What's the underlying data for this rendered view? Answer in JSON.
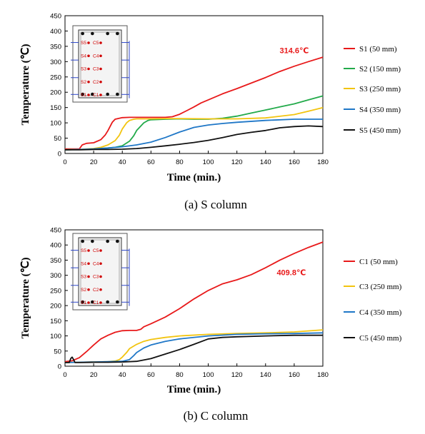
{
  "chart_data": [
    {
      "type": "line",
      "caption": "(a) S column",
      "xlabel": "Time (min.)",
      "ylabel": "Temperature (℃)",
      "xlim": [
        0,
        180
      ],
      "ylim": [
        0,
        450
      ],
      "xticks": [
        0,
        20,
        40,
        60,
        80,
        100,
        120,
        140,
        160,
        180
      ],
      "yticks": [
        0,
        50,
        100,
        150,
        200,
        250,
        300,
        350,
        400,
        450
      ],
      "grid": false,
      "legend_position": "right",
      "annotation": {
        "text": "314.6℃",
        "x": 160,
        "y": 328,
        "color": "#e8191a"
      },
      "inset": {
        "labels": [
          "S5",
          "C5",
          "S4",
          "C4",
          "S3",
          "C3",
          "S2",
          "C2",
          "S1",
          "C1"
        ]
      },
      "series": [
        {
          "name": "S1 (50 mm)",
          "color": "#e8191a",
          "x": [
            0,
            5,
            10,
            12,
            15,
            20,
            25,
            28,
            30,
            33,
            35,
            40,
            45,
            50,
            60,
            70,
            75,
            80,
            85,
            90,
            95,
            100,
            110,
            120,
            130,
            140,
            145,
            150,
            160,
            170,
            180
          ],
          "y": [
            15,
            15,
            15,
            28,
            33,
            35,
            45,
            60,
            75,
            102,
            112,
            117,
            118,
            118,
            118,
            118,
            120,
            128,
            140,
            152,
            165,
            175,
            195,
            212,
            230,
            248,
            258,
            268,
            285,
            300,
            314.6
          ]
        },
        {
          "name": "S2 (150 mm)",
          "color": "#22aa4a",
          "x": [
            0,
            10,
            20,
            30,
            35,
            40,
            45,
            48,
            50,
            53,
            55,
            58,
            60,
            70,
            80,
            90,
            100,
            110,
            120,
            130,
            140,
            150,
            160,
            170,
            180
          ],
          "y": [
            12,
            13,
            15,
            18,
            20,
            25,
            40,
            58,
            75,
            90,
            100,
            108,
            110,
            112,
            113,
            112,
            112,
            115,
            122,
            132,
            142,
            152,
            162,
            175,
            188
          ]
        },
        {
          "name": "S3 (250 mm)",
          "color": "#f2c40f",
          "x": [
            0,
            10,
            20,
            25,
            30,
            35,
            38,
            40,
            43,
            45,
            48,
            50,
            60,
            70,
            80,
            100,
            120,
            140,
            160,
            170,
            180
          ],
          "y": [
            12,
            13,
            16,
            20,
            28,
            42,
            60,
            80,
            100,
            108,
            112,
            113,
            113,
            114,
            114,
            113,
            113,
            116,
            127,
            138,
            150
          ]
        },
        {
          "name": "S4 (350 mm)",
          "color": "#1f77c7",
          "x": [
            0,
            10,
            20,
            30,
            40,
            50,
            60,
            70,
            80,
            90,
            100,
            110,
            120,
            140,
            160,
            180
          ],
          "y": [
            12,
            13,
            15,
            18,
            22,
            28,
            37,
            52,
            70,
            85,
            93,
            98,
            102,
            108,
            112,
            112
          ]
        },
        {
          "name": "S5 (450 mm)",
          "color": "#111111",
          "x": [
            0,
            10,
            20,
            30,
            40,
            50,
            60,
            70,
            80,
            90,
            100,
            110,
            120,
            130,
            140,
            150,
            160,
            170,
            180
          ],
          "y": [
            12,
            12,
            13,
            13,
            14,
            16,
            20,
            25,
            30,
            36,
            43,
            52,
            62,
            69,
            75,
            84,
            88,
            90,
            88
          ]
        }
      ]
    },
    {
      "type": "line",
      "caption": "(b) C column",
      "xlabel": "Time (min.)",
      "ylabel": "Temperature (℃)",
      "xlim": [
        0,
        180
      ],
      "ylim": [
        0,
        450
      ],
      "xticks": [
        0,
        20,
        40,
        60,
        80,
        100,
        120,
        140,
        160,
        180
      ],
      "yticks": [
        0,
        50,
        100,
        150,
        200,
        250,
        300,
        350,
        400,
        450
      ],
      "grid": false,
      "legend_position": "right",
      "annotation": {
        "text": "409.8℃",
        "x": 158,
        "y": 300,
        "color": "#e8191a"
      },
      "inset": {
        "labels": [
          "S5",
          "C5",
          "S4",
          "C4",
          "S3",
          "C3",
          "S2",
          "C2",
          "S1",
          "C1"
        ]
      },
      "series": [
        {
          "name": "C1 (50 mm)",
          "color": "#e8191a",
          "x": [
            0,
            5,
            10,
            15,
            20,
            25,
            30,
            35,
            40,
            45,
            50,
            53,
            55,
            60,
            70,
            80,
            90,
            100,
            110,
            120,
            130,
            140,
            150,
            160,
            170,
            180
          ],
          "y": [
            15,
            18,
            28,
            48,
            70,
            90,
            102,
            112,
            117,
            118,
            118,
            122,
            130,
            140,
            162,
            190,
            222,
            250,
            272,
            285,
            302,
            325,
            350,
            372,
            392,
            409.8
          ]
        },
        {
          "name": "C3 (250 mm)",
          "color": "#f2c40f",
          "x": [
            0,
            10,
            20,
            30,
            35,
            38,
            40,
            43,
            45,
            50,
            55,
            60,
            70,
            80,
            100,
            120,
            140,
            160,
            180
          ],
          "y": [
            12,
            13,
            14,
            15,
            17,
            22,
            30,
            45,
            58,
            72,
            82,
            88,
            95,
            100,
            105,
            108,
            110,
            113,
            120
          ]
        },
        {
          "name": "C4 (350 mm)",
          "color": "#1f77c7",
          "x": [
            0,
            10,
            20,
            30,
            40,
            45,
            48,
            50,
            55,
            60,
            70,
            80,
            100,
            120,
            140,
            160,
            180
          ],
          "y": [
            12,
            13,
            14,
            15,
            16,
            22,
            35,
            45,
            60,
            70,
            82,
            90,
            100,
            105,
            107,
            108,
            110
          ]
        },
        {
          "name": "C5 (450 mm)",
          "color": "#111111",
          "x": [
            0,
            3,
            4,
            5,
            6,
            7,
            10,
            20,
            30,
            40,
            50,
            60,
            70,
            80,
            90,
            100,
            110,
            120,
            140,
            160,
            180
          ],
          "y": [
            12,
            12,
            25,
            30,
            22,
            12,
            12,
            13,
            13,
            14,
            16,
            25,
            40,
            55,
            72,
            90,
            95,
            97,
            100,
            102,
            102
          ]
        }
      ]
    }
  ]
}
